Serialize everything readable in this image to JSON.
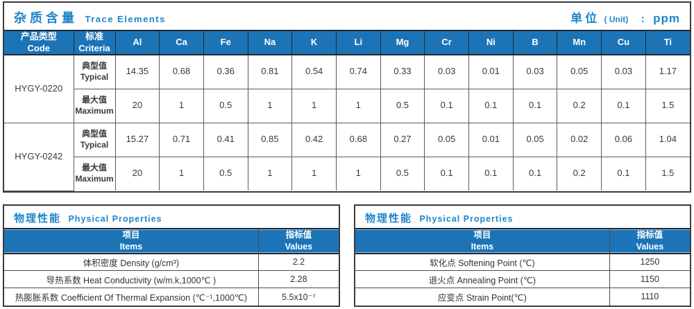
{
  "colors": {
    "accent": "#1e86c8",
    "header_bg": "#1c74b6",
    "border_dark": "#3b3b3b",
    "cell_border": "#595959"
  },
  "trace": {
    "title_zh": "杂质含量",
    "title_en": "Trace Elements",
    "unit_zh": "单位",
    "unit_en": "( Unit)",
    "unit_colon": ":",
    "unit_value": "ppm",
    "col_code": {
      "zh": "产品类型",
      "en": "Code"
    },
    "col_criteria": {
      "zh": "标准",
      "en": "Criteria"
    },
    "elements": [
      "Al",
      "Ca",
      "Fe",
      "Na",
      "K",
      "Li",
      "Mg",
      "Cr",
      "Ni",
      "B",
      "Mn",
      "Cu",
      "Ti"
    ],
    "groups": [
      {
        "code": "HYGY-0220",
        "rows": [
          {
            "criteria_zh": "典型值",
            "criteria_en": "Typical",
            "values": [
              "14.35",
              "0.68",
              "0.36",
              "0.81",
              "0.54",
              "0.74",
              "0.33",
              "0.03",
              "0.01",
              "0.03",
              "0.05",
              "0.03",
              "1.17"
            ]
          },
          {
            "criteria_zh": "最大值",
            "criteria_en": "Maximum",
            "values": [
              "20",
              "1",
              "0.5",
              "1",
              "1",
              "1",
              "0.5",
              "0.1",
              "0.1",
              "0.1",
              "0.2",
              "0.1",
              "1.5"
            ]
          }
        ]
      },
      {
        "code": "HYGY-0242",
        "rows": [
          {
            "criteria_zh": "典型值",
            "criteria_en": "Typical",
            "values": [
              "15.27",
              "0.71",
              "0.41",
              "0.85",
              "0.42",
              "0.68",
              "0.27",
              "0.05",
              "0.01",
              "0.05",
              "0.02",
              "0.06",
              "1.04"
            ]
          },
          {
            "criteria_zh": "最大值",
            "criteria_en": "Maximum",
            "values": [
              "20",
              "1",
              "0.5",
              "1",
              "1",
              "1",
              "0.5",
              "0.1",
              "0.1",
              "0.1",
              "0.2",
              "0.1",
              "1.5"
            ]
          }
        ]
      }
    ]
  },
  "physical_left": {
    "title_zh": "物理性能",
    "title_en": "Physical Properties",
    "col_items": {
      "zh": "项目",
      "en": "Items"
    },
    "col_values": {
      "zh": "指标值",
      "en": "Values"
    },
    "rows": [
      {
        "item": "体积密度 Density (g/cm³)",
        "value": "2.2"
      },
      {
        "item": "导热系数 Heat Conductivity (w/m.k,1000℃ )",
        "value": "2.28"
      },
      {
        "item": "热膨胀系数 Coefficient Of Thermal Expansion (℃⁻¹,1000℃)",
        "value": "5.5x10⁻⁷"
      }
    ]
  },
  "physical_right": {
    "title_zh": "物理性能",
    "title_en": "Physical Properties",
    "col_items": {
      "zh": "项目",
      "en": "Items"
    },
    "col_values": {
      "zh": "指标值",
      "en": "Values"
    },
    "rows": [
      {
        "item": "软化点 Softening Point (℃)",
        "value": "1250"
      },
      {
        "item": "退火点 Annealing Point (℃)",
        "value": "1150"
      },
      {
        "item": "应变点 Strain Point(℃)",
        "value": "1110"
      }
    ]
  }
}
